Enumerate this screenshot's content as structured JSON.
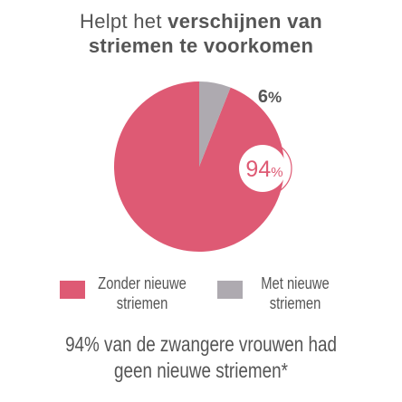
{
  "title": {
    "line1_normal": "Helpt het ",
    "line1_bold": "verschijnen van",
    "line2_bold": "striemen te voorkomen"
  },
  "colors": {
    "primary": "#DE5A74",
    "secondary": "#AEAAB0",
    "text": "#555555"
  },
  "chart_data": {
    "type": "pie",
    "categories": [
      "Zonder nieuwe striemen",
      "Met nieuwe striemen"
    ],
    "values": [
      94,
      6
    ],
    "unit": "%",
    "labels": [
      {
        "number": "94",
        "unit": "%"
      },
      {
        "number": "6",
        "unit": "%"
      }
    ],
    "legend_position": "bottom"
  },
  "legend": {
    "items": [
      {
        "line1": "Zonder nieuwe",
        "line2": "striemen",
        "color": "#DE5A74"
      },
      {
        "line1": "Met nieuwe",
        "line2": "striemen",
        "color": "#AEAAB0"
      }
    ]
  },
  "footnote": {
    "line1": "94% van de zwangere vrouwen had",
    "line2": "geen nieuwe striemen*"
  }
}
